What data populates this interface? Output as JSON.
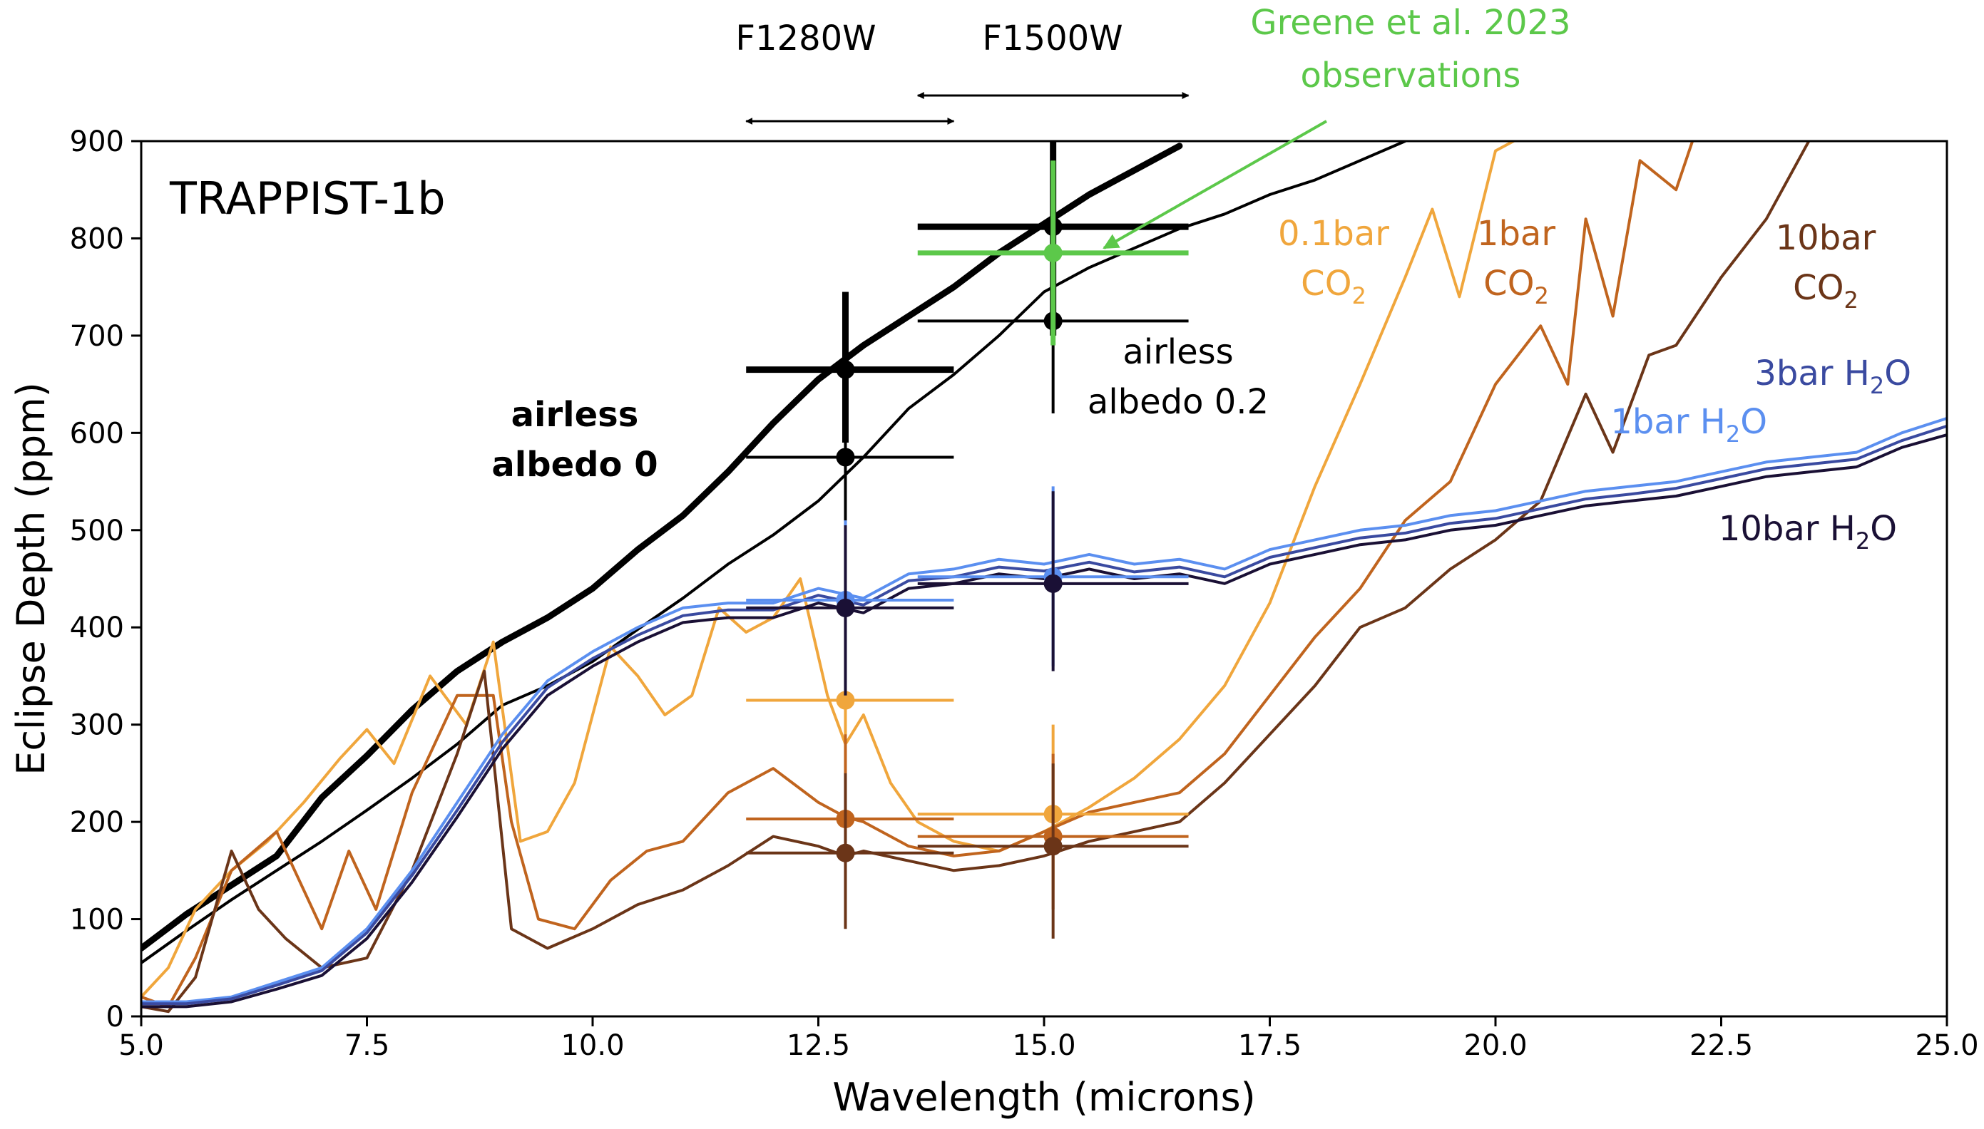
{
  "chart_data": {
    "type": "line",
    "title": "TRAPPIST-1b",
    "xlabel": "Wavelength (microns)",
    "ylabel": "Eclipse Depth (ppm)",
    "xlim": [
      5.0,
      25.0
    ],
    "ylim": [
      0,
      900
    ],
    "xticks": [
      5.0,
      7.5,
      10.0,
      12.5,
      15.0,
      17.5,
      20.0,
      22.5,
      25.0
    ],
    "xtick_labels": [
      "5.0",
      "7.5",
      "10.0",
      "12.5",
      "15.0",
      "17.5",
      "20.0",
      "22.5",
      "25.0"
    ],
    "yticks": [
      0,
      100,
      200,
      300,
      400,
      500,
      600,
      700,
      800,
      900
    ],
    "ytick_labels": [
      "0",
      "100",
      "200",
      "300",
      "400",
      "500",
      "600",
      "700",
      "800",
      "900"
    ],
    "grid": false,
    "legend": "none (inline text labels)",
    "colors": {
      "airless": "#000000",
      "co2_01": "#f0a63c",
      "co2_1": "#c0641e",
      "co2_10": "#6b3518",
      "h2o_1": "#5b8ff0",
      "h2o_3": "#3a4aa0",
      "h2o_10": "#1a1035",
      "greene": "#5cc84a"
    },
    "series": [
      {
        "key": "airless0",
        "color": "#000000",
        "width": 9,
        "x": [
          5.0,
          5.5,
          6.0,
          6.5,
          7.0,
          7.5,
          8.0,
          8.5,
          9.0,
          9.5,
          10.0,
          10.5,
          11.0,
          11.5,
          12.0,
          12.5,
          13.0,
          13.5,
          14.0,
          14.5,
          15.0,
          15.5,
          16.0,
          16.5
        ],
        "y": [
          70,
          105,
          135,
          165,
          225,
          268,
          315,
          355,
          385,
          410,
          440,
          480,
          515,
          560,
          610,
          655,
          690,
          720,
          750,
          785,
          815,
          845,
          870,
          895
        ]
      },
      {
        "key": "airless02",
        "color": "#000000",
        "width": 4,
        "x": [
          5.0,
          5.5,
          6.0,
          6.5,
          7.0,
          7.5,
          8.0,
          8.5,
          9.0,
          9.5,
          10.0,
          10.5,
          11.0,
          11.5,
          12.0,
          12.5,
          13.0,
          13.5,
          14.0,
          14.5,
          15.0,
          15.5,
          16.0,
          16.5,
          17.0,
          17.5,
          18.0,
          18.5,
          19.0
        ],
        "y": [
          55,
          88,
          120,
          150,
          180,
          212,
          245,
          280,
          320,
          340,
          365,
          398,
          430,
          465,
          495,
          530,
          575,
          625,
          660,
          700,
          745,
          770,
          790,
          810,
          825,
          845,
          860,
          880,
          900
        ]
      },
      {
        "key": "co2_01",
        "color": "#f0a63c",
        "width": 4,
        "x": [
          5.0,
          5.3,
          5.6,
          6.0,
          6.4,
          6.8,
          7.2,
          7.5,
          7.8,
          8.2,
          8.6,
          8.9,
          9.2,
          9.5,
          9.8,
          10.2,
          10.5,
          10.8,
          11.1,
          11.4,
          11.7,
          12.0,
          12.3,
          12.6,
          12.8,
          13.0,
          13.3,
          13.6,
          14.0,
          14.5,
          15.0,
          15.5,
          16.0,
          16.5,
          17.0,
          17.5,
          18.0,
          18.5,
          19.0,
          19.3,
          19.6,
          20.0,
          20.3
        ],
        "y": [
          20,
          50,
          110,
          150,
          180,
          220,
          265,
          295,
          260,
          350,
          300,
          385,
          180,
          190,
          240,
          380,
          350,
          310,
          330,
          420,
          395,
          410,
          450,
          330,
          280,
          310,
          240,
          200,
          180,
          170,
          190,
          215,
          245,
          285,
          340,
          425,
          545,
          650,
          760,
          830,
          740,
          890,
          905
        ]
      },
      {
        "key": "co2_1",
        "color": "#c0641e",
        "width": 4,
        "x": [
          5.0,
          5.3,
          5.6,
          6.0,
          6.5,
          7.0,
          7.3,
          7.6,
          8.0,
          8.5,
          8.9,
          9.1,
          9.4,
          9.8,
          10.2,
          10.6,
          11.0,
          11.5,
          12.0,
          12.5,
          12.8,
          13.0,
          13.5,
          14.0,
          14.5,
          15.0,
          15.5,
          16.0,
          16.5,
          17.0,
          17.5,
          18.0,
          18.5,
          19.0,
          19.5,
          20.0,
          20.5,
          20.8,
          21.0,
          21.3,
          21.6,
          22.0,
          22.2
        ],
        "y": [
          20,
          10,
          60,
          150,
          190,
          90,
          170,
          110,
          230,
          330,
          330,
          200,
          100,
          90,
          140,
          170,
          180,
          230,
          255,
          220,
          205,
          200,
          175,
          165,
          170,
          190,
          210,
          220,
          230,
          270,
          330,
          390,
          440,
          510,
          550,
          650,
          710,
          650,
          820,
          720,
          880,
          850,
          905
        ]
      },
      {
        "key": "co2_10",
        "color": "#6b3518",
        "width": 4,
        "x": [
          5.0,
          5.3,
          5.6,
          6.0,
          6.3,
          6.6,
          7.0,
          7.5,
          8.0,
          8.5,
          8.8,
          9.1,
          9.5,
          10.0,
          10.5,
          11.0,
          11.5,
          12.0,
          12.5,
          12.8,
          13.0,
          13.5,
          14.0,
          14.5,
          15.0,
          15.5,
          16.0,
          16.5,
          17.0,
          17.5,
          18.0,
          18.5,
          19.0,
          19.5,
          20.0,
          20.5,
          21.0,
          21.3,
          21.7,
          22.0,
          22.5,
          23.0,
          23.5
        ],
        "y": [
          10,
          5,
          40,
          170,
          110,
          80,
          50,
          60,
          150,
          270,
          355,
          90,
          70,
          90,
          115,
          130,
          155,
          185,
          175,
          165,
          170,
          160,
          150,
          155,
          165,
          180,
          190,
          200,
          240,
          290,
          340,
          400,
          420,
          460,
          490,
          530,
          640,
          580,
          680,
          690,
          760,
          820,
          905
        ]
      },
      {
        "key": "h2o_1",
        "color": "#5b8ff0",
        "width": 4,
        "x": [
          5.0,
          5.5,
          6.0,
          6.5,
          7.0,
          7.5,
          8.0,
          8.5,
          9.0,
          9.5,
          10.0,
          10.5,
          11.0,
          11.5,
          12.0,
          12.5,
          13.0,
          13.5,
          14.0,
          14.5,
          15.0,
          15.5,
          16.0,
          16.5,
          17.0,
          17.5,
          18.0,
          18.5,
          19.0,
          19.5,
          20.0,
          20.5,
          21.0,
          21.5,
          22.0,
          22.5,
          23.0,
          23.5,
          24.0,
          24.5,
          25.0
        ],
        "y": [
          15,
          15,
          20,
          35,
          50,
          90,
          150,
          220,
          290,
          345,
          375,
          400,
          420,
          425,
          425,
          440,
          430,
          455,
          460,
          470,
          465,
          475,
          465,
          470,
          460,
          480,
          490,
          500,
          505,
          515,
          520,
          530,
          540,
          545,
          550,
          560,
          570,
          575,
          580,
          600,
          615
        ]
      },
      {
        "key": "h2o_3",
        "color": "#3a4aa0",
        "width": 4,
        "x": [
          5.0,
          5.5,
          6.0,
          6.5,
          7.0,
          7.5,
          8.0,
          8.5,
          9.0,
          9.5,
          10.0,
          10.5,
          11.0,
          11.5,
          12.0,
          12.5,
          13.0,
          13.5,
          14.0,
          14.5,
          15.0,
          15.5,
          16.0,
          16.5,
          17.0,
          17.5,
          18.0,
          18.5,
          19.0,
          19.5,
          20.0,
          20.5,
          21.0,
          21.5,
          22.0,
          22.5,
          23.0,
          23.5,
          24.0,
          24.5,
          25.0
        ],
        "y": [
          13,
          13,
          18,
          32,
          47,
          86,
          145,
          212,
          282,
          338,
          368,
          392,
          412,
          418,
          418,
          433,
          423,
          448,
          452,
          462,
          458,
          467,
          457,
          462,
          452,
          472,
          482,
          492,
          497,
          507,
          512,
          522,
          532,
          537,
          543,
          553,
          563,
          568,
          573,
          592,
          607
        ]
      },
      {
        "key": "h2o_10",
        "color": "#1a1035",
        "width": 4,
        "x": [
          5.0,
          5.5,
          6.0,
          6.5,
          7.0,
          7.5,
          8.0,
          8.5,
          9.0,
          9.5,
          10.0,
          10.5,
          11.0,
          11.5,
          12.0,
          12.5,
          13.0,
          13.5,
          14.0,
          14.5,
          15.0,
          15.5,
          16.0,
          16.5,
          17.0,
          17.5,
          18.0,
          18.5,
          19.0,
          19.5,
          20.0,
          20.5,
          21.0,
          21.5,
          22.0,
          22.5,
          23.0,
          23.5,
          24.0,
          24.5,
          25.0
        ],
        "y": [
          10,
          10,
          15,
          28,
          42,
          80,
          138,
          205,
          275,
          330,
          360,
          385,
          405,
          410,
          410,
          425,
          415,
          440,
          445,
          455,
          450,
          460,
          450,
          455,
          445,
          465,
          475,
          485,
          490,
          500,
          505,
          515,
          525,
          530,
          535,
          545,
          555,
          560,
          565,
          585,
          598
        ]
      }
    ],
    "errorbars": [
      {
        "x": 12.8,
        "y": 665,
        "xerr": [
          11.7,
          14.0
        ],
        "yerr": [
          590,
          745
        ],
        "color": "#000000",
        "width": 9
      },
      {
        "x": 12.8,
        "y": 575,
        "xerr": [
          11.7,
          14.0
        ],
        "yerr": [
          420,
          660
        ],
        "color": "#000000",
        "width": 4
      },
      {
        "x": 15.1,
        "y": 812,
        "xerr": [
          13.6,
          16.6
        ],
        "yerr": [
          700,
          900
        ],
        "color": "#000000",
        "width": 9
      },
      {
        "x": 15.1,
        "y": 715,
        "xerr": [
          13.6,
          16.6
        ],
        "yerr": [
          620,
          810
        ],
        "color": "#000000",
        "width": 4
      },
      {
        "x": 15.1,
        "y": 785,
        "xerr": [
          13.6,
          16.6
        ],
        "yerr": [
          690,
          880
        ],
        "color": "#5cc84a",
        "width": 7
      },
      {
        "x": 12.8,
        "y": 325,
        "xerr": [
          11.7,
          14.0
        ],
        "yerr": [
          240,
          410
        ],
        "color": "#f0a63c",
        "width": 4
      },
      {
        "x": 15.1,
        "y": 208,
        "xerr": [
          13.6,
          16.6
        ],
        "yerr": [
          130,
          300
        ],
        "color": "#f0a63c",
        "width": 4
      },
      {
        "x": 12.8,
        "y": 203,
        "xerr": [
          11.7,
          14.0
        ],
        "yerr": [
          120,
          290
        ],
        "color": "#c0641e",
        "width": 4
      },
      {
        "x": 15.1,
        "y": 185,
        "xerr": [
          13.6,
          16.6
        ],
        "yerr": [
          110,
          270
        ],
        "color": "#c0641e",
        "width": 4
      },
      {
        "x": 12.8,
        "y": 168,
        "xerr": [
          11.7,
          14.0
        ],
        "yerr": [
          90,
          250
        ],
        "color": "#6b3518",
        "width": 4
      },
      {
        "x": 15.1,
        "y": 175,
        "xerr": [
          13.6,
          16.6
        ],
        "yerr": [
          80,
          260
        ],
        "color": "#6b3518",
        "width": 4
      },
      {
        "x": 12.8,
        "y": 428,
        "xerr": [
          11.7,
          14.0
        ],
        "yerr": [
          340,
          510
        ],
        "color": "#5b8ff0",
        "width": 4
      },
      {
        "x": 12.8,
        "y": 420,
        "xerr": [
          11.7,
          14.0
        ],
        "yerr": [
          330,
          505
        ],
        "color": "#1a1035",
        "width": 4
      },
      {
        "x": 15.1,
        "y": 452,
        "xerr": [
          13.6,
          16.6
        ],
        "yerr": [
          360,
          545
        ],
        "color": "#5b8ff0",
        "width": 4
      },
      {
        "x": 15.1,
        "y": 445,
        "xerr": [
          13.6,
          16.6
        ],
        "yerr": [
          355,
          540
        ],
        "color": "#1a1035",
        "width": 4
      }
    ],
    "filters": [
      {
        "label": "F1280W",
        "x0": 11.7,
        "x1": 14.0
      },
      {
        "label": "F1500W",
        "x0": 13.6,
        "x1": 16.6
      }
    ],
    "annotations": {
      "greene": [
        "Greene et al. 2023",
        "observations"
      ],
      "airless0": [
        "airless",
        "albedo 0"
      ],
      "airless02": [
        "airless",
        "albedo 0.2"
      ],
      "co2_01": [
        "0.1bar",
        "CO",
        "2"
      ],
      "co2_1": [
        "1bar",
        "CO",
        "2"
      ],
      "co2_10": [
        "10bar",
        "CO",
        "2"
      ],
      "h2o_3": [
        "3bar H",
        "2",
        "O"
      ],
      "h2o_1": [
        "1bar H",
        "2",
        "O"
      ],
      "h2o_10": [
        "10bar H",
        "2",
        "O"
      ]
    }
  }
}
